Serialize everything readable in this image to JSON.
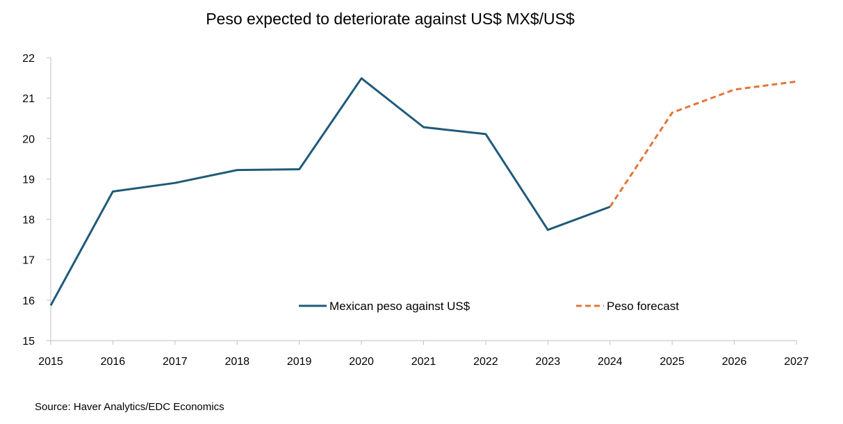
{
  "chart_data": {
    "type": "line",
    "title": "Peso expected to deteriorate against US$ MX$/US$",
    "source": "Source: Haver Analytics/EDC Economics",
    "x": [
      2015,
      2016,
      2017,
      2018,
      2019,
      2020,
      2021,
      2022,
      2023,
      2024,
      2025,
      2026,
      2027
    ],
    "xlim": [
      2015,
      2027
    ],
    "ylim": [
      15,
      22
    ],
    "yticks": [
      15,
      16,
      17,
      18,
      19,
      20,
      21,
      22
    ],
    "grid": false,
    "legend_position": "bottom-inside",
    "series": [
      {
        "name": "Mexican peso against US$",
        "style": "solid",
        "color": "#1f5a7a",
        "x": [
          2015,
          2016,
          2017,
          2018,
          2019,
          2020,
          2021,
          2022,
          2023,
          2024
        ],
        "values": [
          15.87,
          18.69,
          18.9,
          19.22,
          19.24,
          21.49,
          20.28,
          20.11,
          17.74,
          18.31
        ]
      },
      {
        "name": "Peso forecast",
        "style": "dashed",
        "color": "#e0763a",
        "x": [
          2024,
          2025,
          2026,
          2027
        ],
        "values": [
          18.31,
          20.64,
          21.21,
          21.41
        ]
      }
    ]
  }
}
